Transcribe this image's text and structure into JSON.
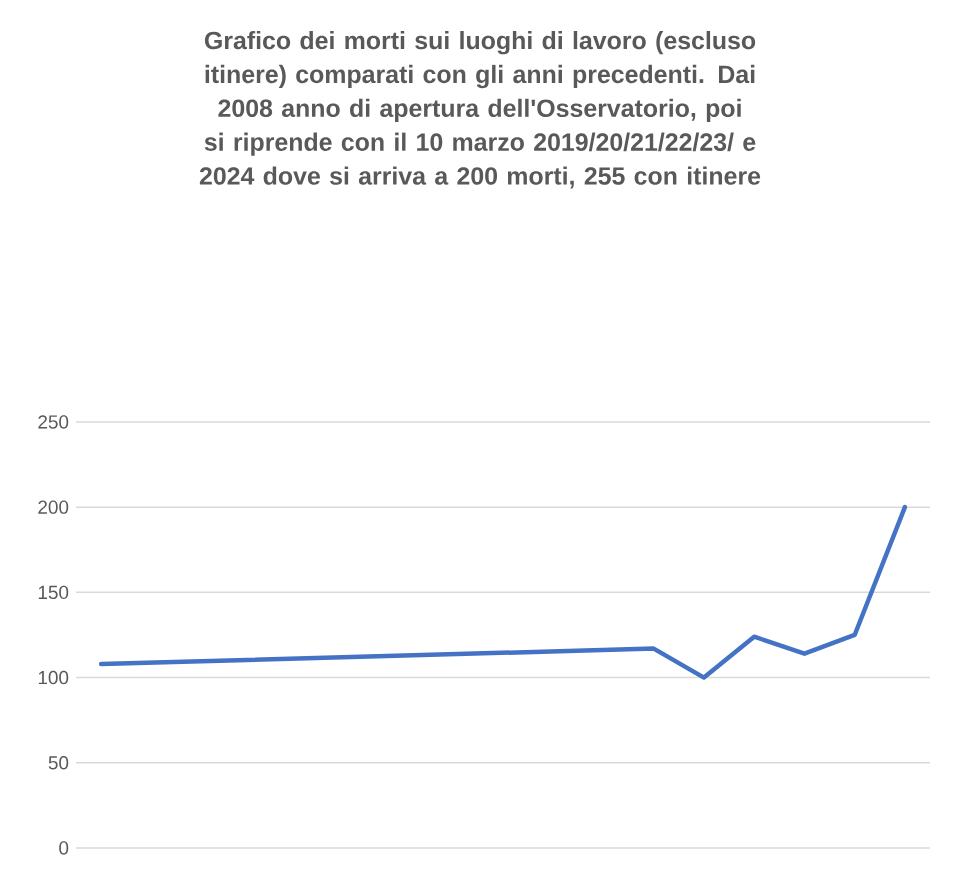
{
  "chart_data": {
    "type": "line",
    "title": "Grafico dei morti sui luoghi di lavoro (escluso itinere) comparati con gli anni precedenti. Dai 2008 anno di apertura dell'Osservatorio, poi si riprende con il 10 marzo 2019/20/21/22/23/ e 2024 dove si arriva a 200 morti, 255 con itinere",
    "categories": [
      null,
      null,
      null,
      null,
      null,
      null,
      null,
      null,
      null,
      null,
      null,
      null,
      null,
      null,
      null,
      null,
      null
    ],
    "series": [
      {
        "color": "#4472c4",
        "values": [
          108,
          null,
          null,
          null,
          null,
          null,
          null,
          null,
          null,
          null,
          null,
          117,
          100,
          124,
          114,
          125,
          200
        ]
      }
    ],
    "ylim": [
      0,
      250
    ],
    "yticks": [
      0,
      50,
      100,
      150,
      200,
      250
    ],
    "grid": "y",
    "tick_labels": "y",
    "marker": "none",
    "line_style": "solid"
  }
}
